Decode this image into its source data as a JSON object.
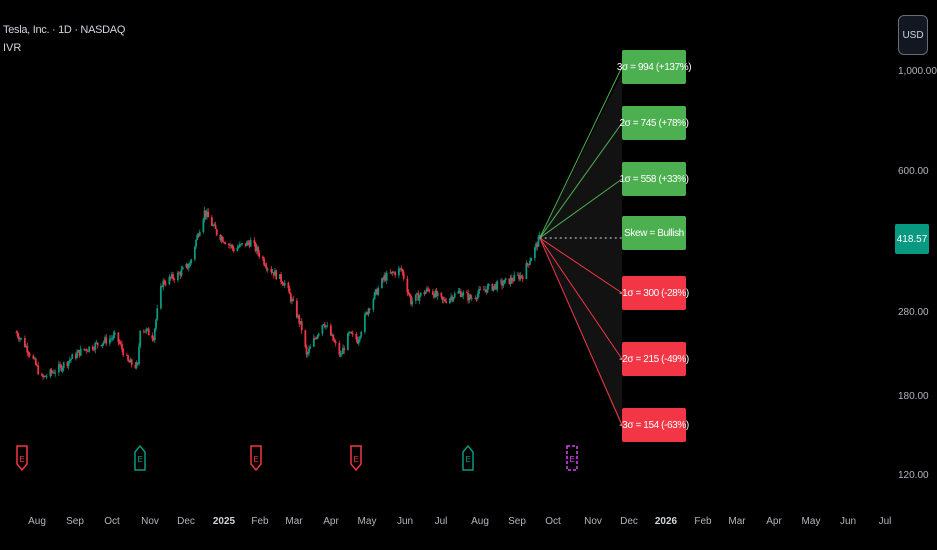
{
  "header": {
    "title": "Tesla, Inc. · 1D · NASDAQ",
    "indicator": "IVR",
    "currency_button": "USD"
  },
  "last_price": "418.57",
  "colors": {
    "up": "#089981",
    "down": "#f23645",
    "bull": "#4caf50",
    "earnings_down": "#f23645",
    "earnings_up": "#089981",
    "earnings_future": "#e040fb"
  },
  "labels": {
    "sigma3_up": "3σ = 994 (+137%)",
    "sigma2_up": "2σ = 745 (+78%)",
    "sigma1_up": "1σ = 558 (+33%)",
    "skew": "Skew = Bullish",
    "sigma1_down": "-1σ = 300 (-28%)",
    "sigma2_down": "-2σ = 215 (-49%)",
    "sigma3_down": "-3σ = 154 (-63%)"
  },
  "y_axis": {
    "scale": "log",
    "ticks": [
      "1,000.00",
      "600.00",
      "280.00",
      "180.00",
      "120.00"
    ]
  },
  "x_axis": {
    "ticks": [
      "Aug",
      "Sep",
      "Oct",
      "Nov",
      "Dec",
      "2025",
      "Feb",
      "Mar",
      "Apr",
      "May",
      "Jun",
      "Jul",
      "Aug",
      "Sep",
      "Oct",
      "Nov",
      "Dec",
      "2026",
      "Feb",
      "Mar",
      "Apr",
      "May",
      "Jun",
      "Jul"
    ]
  },
  "earnings_markers": [
    {
      "label": "E",
      "type": "down"
    },
    {
      "label": "E",
      "type": "up"
    },
    {
      "label": "E",
      "type": "down"
    },
    {
      "label": "E",
      "type": "down"
    },
    {
      "label": "E",
      "type": "up"
    },
    {
      "label": "E",
      "type": "future"
    }
  ],
  "chart_data": {
    "type": "line",
    "title": "Tesla, Inc. · 1D · NASDAQ",
    "yscale": "log",
    "ylim": [
      105,
      1250
    ],
    "series": [
      {
        "x": [
          "2024-07-15",
          "2024-07-25",
          "2024-08-05",
          "2024-08-20",
          "2024-09-05",
          "2024-09-20",
          "2024-10-05",
          "2024-10-15",
          "2024-10-23",
          "2024-10-25",
          "2024-11-05",
          "2024-11-12",
          "2024-11-25",
          "2024-12-05",
          "2024-12-17",
          "2024-12-27",
          "2025-01-10",
          "2025-01-24",
          "2025-02-07",
          "2025-02-21",
          "2025-03-07",
          "2025-03-11",
          "2025-03-25",
          "2025-04-08",
          "2025-04-15",
          "2025-04-22",
          "2025-05-01",
          "2025-05-14",
          "2025-05-28",
          "2025-06-05",
          "2025-06-20",
          "2025-07-01",
          "2025-07-15",
          "2025-07-24",
          "2025-08-05",
          "2025-08-20",
          "2025-09-05",
          "2025-09-15",
          "2025-09-19"
        ],
        "values": [
          255,
          232,
          200,
          212,
          230,
          240,
          250,
          218,
          213,
          262,
          250,
          330,
          345,
          365,
          480,
          430,
          395,
          410,
          360,
          330,
          260,
          225,
          270,
          225,
          252,
          245,
          290,
          340,
          355,
          300,
          320,
          300,
          315,
          305,
          320,
          330,
          345,
          395,
          418.57
        ]
      }
    ],
    "projection": {
      "from_date": "2025-09-19",
      "to_date": "2025-11-20",
      "start_value": 418.57,
      "levels": [
        {
          "sigma": "3σ",
          "value": 994,
          "pct": "+137%"
        },
        {
          "sigma": "2σ",
          "value": 745,
          "pct": "+78%"
        },
        {
          "sigma": "1σ",
          "value": 558,
          "pct": "+33%"
        },
        {
          "sigma": "-1σ",
          "value": 300,
          "pct": "-28%"
        },
        {
          "sigma": "-2σ",
          "value": 215,
          "pct": "-49%"
        },
        {
          "sigma": "-3σ",
          "value": 154,
          "pct": "-63%"
        }
      ],
      "skew": "Bullish"
    }
  }
}
